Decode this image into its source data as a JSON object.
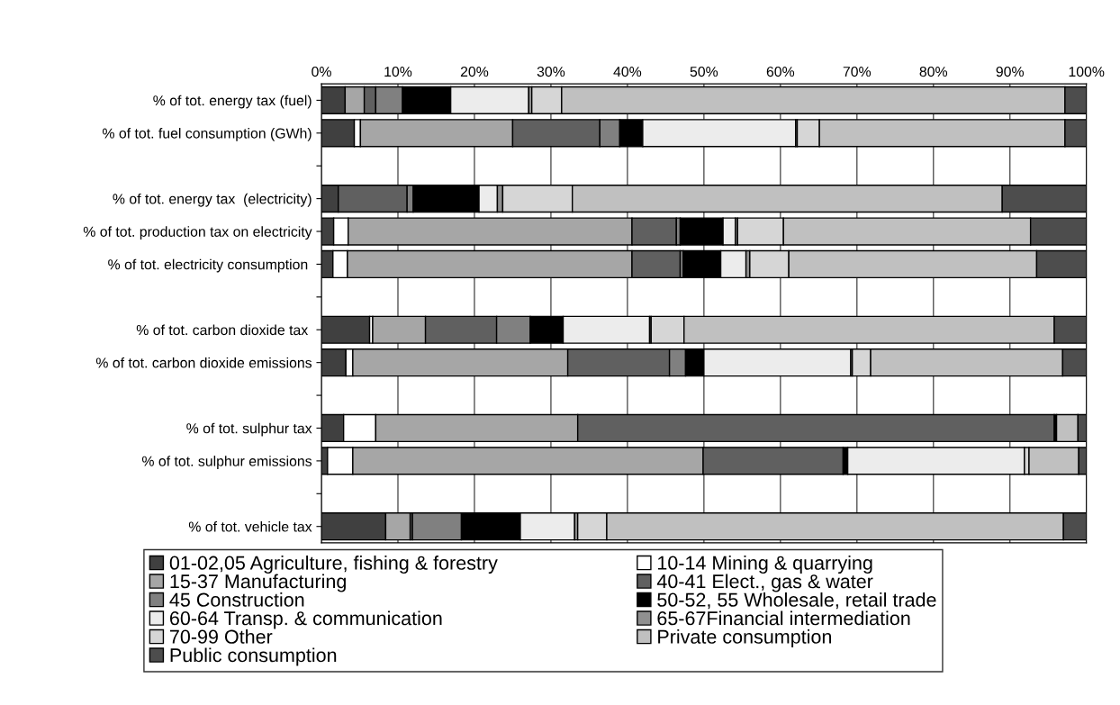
{
  "chart_data": {
    "type": "bar",
    "orientation": "horizontal",
    "stacked": true,
    "categories": [
      "% of tot. energy tax (fuel)",
      "% of tot. fuel consumption (GWh)",
      null,
      "% of tot. energy tax  (electricity)",
      "% of tot. production tax on electricity",
      "% of tot. electricity consumption ",
      null,
      "% of tot. carbon dioxide tax ",
      "% of tot. carbon dioxide emissions",
      null,
      "% of tot. sulphur tax",
      "% of tot. sulphur emissions",
      null,
      "% of tot. vehicle tax"
    ],
    "series": [
      {
        "name": "01-02,05 Agriculture, fishing & forestry",
        "color": "#404040",
        "values": [
          3.1,
          4.3,
          null,
          2.2,
          1.6,
          1.5,
          null,
          6.3,
          3.2,
          null,
          2.9,
          0.8,
          null,
          8.4
        ]
      },
      {
        "name": "10-14 Mining & quarrying",
        "color": "#ffffff",
        "values": [
          0,
          0.8,
          null,
          0,
          1.9,
          1.9,
          null,
          0.4,
          0.9,
          null,
          4.2,
          3.3,
          null,
          0
        ]
      },
      {
        "name": "15-37 Manufacturing",
        "color": "#a6a6a6",
        "values": [
          2.5,
          19.9,
          null,
          0,
          37.1,
          37.2,
          null,
          6.9,
          28.1,
          null,
          26.4,
          45.8,
          null,
          3.2
        ]
      },
      {
        "name": "40-41 Elect., gas & water",
        "color": "#606060",
        "values": [
          1.5,
          11.4,
          null,
          9.0,
          5.8,
          6.3,
          null,
          9.3,
          13.3,
          null,
          62.3,
          18.3,
          null,
          0.3
        ]
      },
      {
        "name": "45 Construction",
        "color": "#808080",
        "values": [
          3.5,
          2.6,
          null,
          0.8,
          0.5,
          0.4,
          null,
          4.4,
          2.1,
          null,
          0,
          0,
          null,
          6.4
        ]
      },
      {
        "name": "50-52, 55 Wholesale, retail trade",
        "color": "#000000",
        "values": [
          6.3,
          3.0,
          null,
          8.6,
          5.6,
          4.9,
          null,
          4.3,
          2.4,
          null,
          0.3,
          0.6,
          null,
          7.7
        ]
      },
      {
        "name": "60-64 Transp. & communication",
        "color": "#ececec",
        "values": [
          10.2,
          20.0,
          null,
          2.4,
          1.6,
          3.3,
          null,
          11.3,
          19.2,
          null,
          0,
          23.1,
          null,
          7.1
        ]
      },
      {
        "name": "65-67Financial intermediation",
        "color": "#909090",
        "values": [
          0.4,
          0.2,
          null,
          0.7,
          0.3,
          0.5,
          null,
          0.2,
          0.2,
          null,
          0,
          0,
          null,
          0.4
        ]
      },
      {
        "name": "70-99 Other",
        "color": "#d6d6d6",
        "values": [
          3.9,
          2.9,
          null,
          9.1,
          6.0,
          5.1,
          null,
          4.3,
          2.4,
          null,
          0,
          0.6,
          null,
          3.8
        ]
      },
      {
        "name": "Private consumption",
        "color": "#c0c0c0",
        "values": [
          65.8,
          32.1,
          null,
          56.2,
          32.3,
          32.4,
          null,
          48.4,
          25.1,
          null,
          2.8,
          6.5,
          null,
          59.7
        ]
      },
      {
        "name": "Public consumption",
        "color": "#4d4d4d",
        "values": [
          2.8,
          2.8,
          null,
          11.0,
          7.3,
          6.5,
          null,
          4.2,
          3.1,
          null,
          1.1,
          1.0,
          null,
          3.0
        ]
      }
    ],
    "xlim": [
      0,
      100
    ],
    "xticks": [
      {
        "value": 0,
        "label": "0%"
      },
      {
        "value": 10,
        "label": "10%"
      },
      {
        "value": 20,
        "label": "20%"
      },
      {
        "value": 30,
        "label": "30%"
      },
      {
        "value": 40,
        "label": "40%"
      },
      {
        "value": 50,
        "label": "50%"
      },
      {
        "value": 60,
        "label": "60%"
      },
      {
        "value": 70,
        "label": "70%"
      },
      {
        "value": 80,
        "label": "80%"
      },
      {
        "value": 90,
        "label": "90%"
      },
      {
        "value": 100,
        "label": "100%"
      }
    ],
    "grid": "x",
    "legend": "bottom"
  }
}
